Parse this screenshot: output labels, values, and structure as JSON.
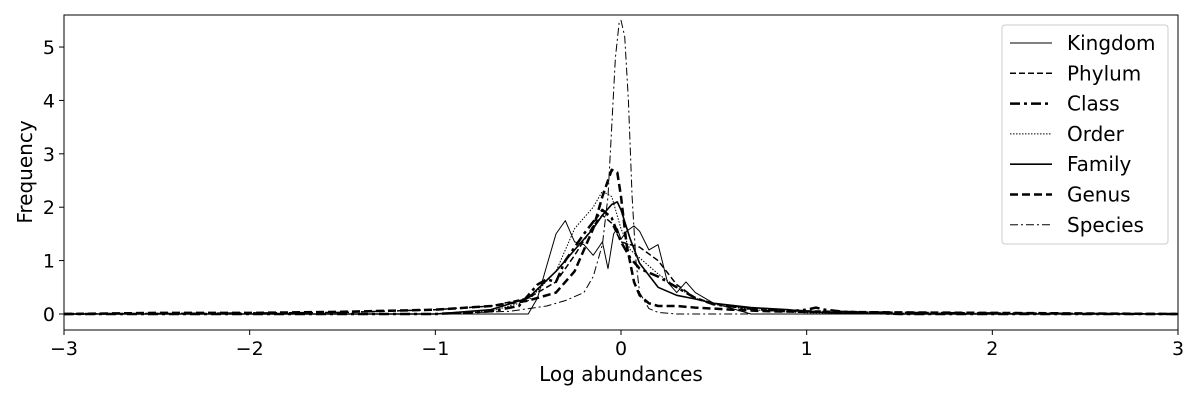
{
  "chart_data": {
    "type": "line",
    "xlabel": "Log abundances",
    "ylabel": "Frequency",
    "xlim": [
      -3,
      3
    ],
    "ylim": [
      -0.3,
      5.6
    ],
    "xticks": [
      -3,
      -2,
      -1,
      0,
      1,
      2,
      3
    ],
    "xtick_labels": [
      "−3",
      "−2",
      "−1",
      "0",
      "1",
      "2",
      "3"
    ],
    "yticks": [
      0,
      1,
      2,
      3,
      4,
      5
    ],
    "ytick_labels": [
      "0",
      "1",
      "2",
      "3",
      "4",
      "5"
    ],
    "grid": false,
    "legend_position": "top-right",
    "series": [
      {
        "name": "Kingdom",
        "style": "thin-solid",
        "x": [
          -3,
          -1.0,
          -0.6,
          -0.5,
          -0.45,
          -0.4,
          -0.35,
          -0.3,
          -0.25,
          -0.2,
          -0.15,
          -0.1,
          -0.07,
          -0.04,
          -0.02,
          0,
          0.03,
          0.07,
          0.1,
          0.15,
          0.2,
          0.25,
          0.3,
          0.35,
          0.4,
          0.5,
          0.6,
          0.7,
          1.0,
          3
        ],
        "y": [
          0,
          0,
          0,
          0,
          0.3,
          0.9,
          1.5,
          1.75,
          1.35,
          1.3,
          1.1,
          1.35,
          0.85,
          1.5,
          1.6,
          1.4,
          1.55,
          1.65,
          1.55,
          1.2,
          1.3,
          0.6,
          0.4,
          0.6,
          0.4,
          0.2,
          0.1,
          0.0,
          0,
          0
        ]
      },
      {
        "name": "Phylum",
        "style": "dashed",
        "x": [
          -3,
          -1.5,
          -1.0,
          -0.7,
          -0.5,
          -0.35,
          -0.25,
          -0.15,
          -0.1,
          -0.05,
          0,
          0.05,
          0.1,
          0.2,
          0.3,
          0.4,
          0.5,
          0.7,
          1.0,
          1.5,
          2.0,
          3
        ],
        "y": [
          0,
          0.03,
          0.08,
          0.15,
          0.3,
          0.6,
          1.1,
          1.65,
          1.85,
          1.7,
          1.35,
          1.3,
          1.25,
          1.0,
          0.55,
          0.3,
          0.2,
          0.1,
          0.06,
          0.03,
          0.02,
          0
        ]
      },
      {
        "name": "Class",
        "style": "thick-dashdot",
        "x": [
          -3,
          -1.0,
          -0.7,
          -0.55,
          -0.45,
          -0.4,
          -0.35,
          -0.3,
          -0.2,
          -0.1,
          -0.05,
          0,
          0.05,
          0.1,
          0.2,
          0.3,
          0.4,
          0.5,
          0.7,
          0.9,
          1.0,
          1.05,
          1.1,
          1.2,
          1.5,
          3
        ],
        "y": [
          0,
          0,
          0.05,
          0.15,
          0.55,
          0.65,
          0.6,
          1.0,
          1.5,
          1.95,
          1.8,
          1.35,
          1.05,
          0.85,
          0.7,
          0.5,
          0.3,
          0.18,
          0.1,
          0.05,
          0.08,
          0.12,
          0.08,
          0.04,
          0,
          0
        ]
      },
      {
        "name": "Order",
        "style": "dotted",
        "x": [
          -3,
          -1.0,
          -0.7,
          -0.5,
          -0.35,
          -0.25,
          -0.15,
          -0.1,
          -0.05,
          0,
          0.05,
          0.1,
          0.2,
          0.3,
          0.4,
          0.5,
          0.7,
          1.0,
          3
        ],
        "y": [
          0,
          0,
          0.05,
          0.25,
          0.8,
          1.6,
          2.0,
          2.3,
          2.2,
          1.6,
          1.2,
          1.05,
          0.75,
          0.5,
          0.3,
          0.18,
          0.08,
          0.02,
          0
        ]
      },
      {
        "name": "Family",
        "style": "solid",
        "x": [
          -3,
          -1.0,
          -0.7,
          -0.5,
          -0.35,
          -0.25,
          -0.15,
          -0.1,
          -0.05,
          -0.02,
          0,
          0.05,
          0.1,
          0.2,
          0.3,
          0.4,
          0.5,
          0.7,
          0.9,
          1.0,
          1.2,
          1.5,
          3
        ],
        "y": [
          0,
          0,
          0.08,
          0.3,
          0.8,
          1.2,
          1.6,
          1.85,
          2.05,
          2.1,
          1.95,
          1.4,
          0.95,
          0.5,
          0.35,
          0.28,
          0.2,
          0.12,
          0.08,
          0.04,
          0.02,
          0,
          0
        ]
      },
      {
        "name": "Genus",
        "style": "thick-dashed",
        "x": [
          -3,
          -2.5,
          -2.0,
          -1.5,
          -1.0,
          -0.7,
          -0.5,
          -0.35,
          -0.25,
          -0.15,
          -0.1,
          -0.05,
          -0.02,
          0,
          0.03,
          0.07,
          0.1,
          0.15,
          0.2,
          0.3,
          0.4,
          0.6,
          0.8,
          1.0,
          1.5,
          2.0,
          3
        ],
        "y": [
          0,
          0.02,
          0.02,
          0.04,
          0.08,
          0.15,
          0.25,
          0.4,
          0.8,
          1.6,
          2.2,
          2.7,
          2.65,
          2.2,
          1.3,
          0.6,
          0.35,
          0.2,
          0.15,
          0.15,
          0.12,
          0.08,
          0.05,
          0.04,
          0.03,
          0.02,
          0
        ]
      },
      {
        "name": "Species",
        "style": "thin-dashdot",
        "x": [
          -3,
          -1.0,
          -0.6,
          -0.4,
          -0.3,
          -0.2,
          -0.15,
          -0.1,
          -0.07,
          -0.05,
          -0.03,
          -0.01,
          0,
          0.02,
          0.04,
          0.06,
          0.08,
          0.1,
          0.15,
          0.2,
          0.3,
          0.5,
          3
        ],
        "y": [
          0,
          0,
          0.05,
          0.15,
          0.25,
          0.4,
          0.7,
          1.3,
          2.2,
          3.5,
          4.8,
          5.45,
          5.5,
          5.2,
          4.0,
          2.2,
          1.0,
          0.4,
          0.1,
          0.03,
          0,
          0,
          0
        ]
      }
    ]
  }
}
